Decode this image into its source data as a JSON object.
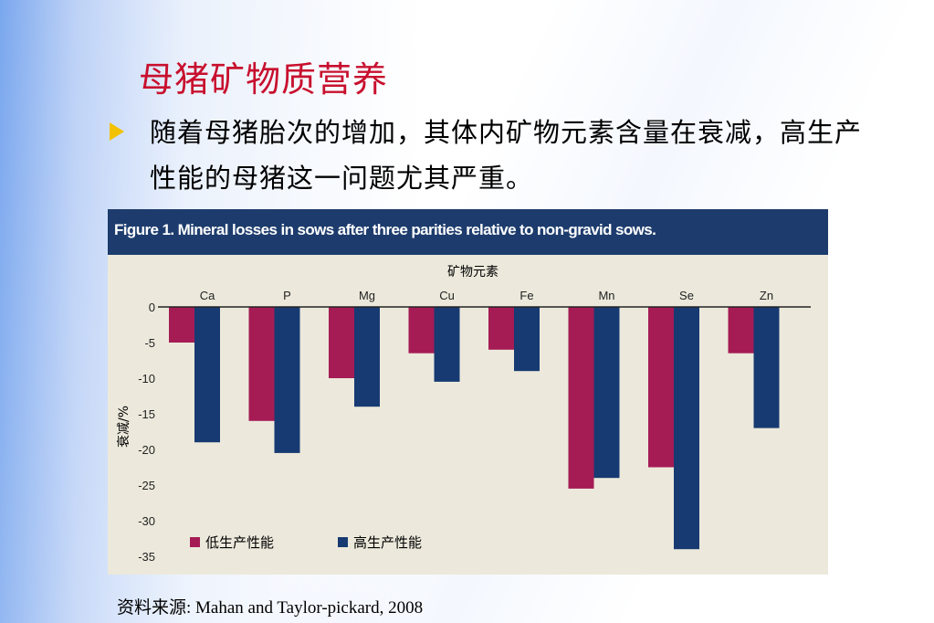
{
  "slide": {
    "title": "母猪矿物质营养",
    "bullet": "随着母猪胎次的增加，其体内矿物元素含量在衰减，高生产性能的母猪这一问题尤其严重。",
    "source": "资料来源: Mahan and Taylor-pickard, 2008"
  },
  "figure": {
    "header": "Figure 1. Mineral losses in sows after three parities relative to non-gravid sows."
  },
  "colors": {
    "low": "#a51c55",
    "high": "#173a72",
    "accent_title": "#c8102e"
  },
  "chart_data": {
    "type": "bar",
    "title": "",
    "xlabel": "矿物元素",
    "ylabel": "衰减/%",
    "categories": [
      "Ca",
      "P",
      "Mg",
      "Cu",
      "Fe",
      "Mn",
      "Se",
      "Zn"
    ],
    "series": [
      {
        "name": "低生产性能",
        "values": [
          -5,
          -16,
          -10,
          -6.5,
          -6,
          -25.5,
          -22.5,
          -6.5
        ]
      },
      {
        "name": "高生产性能",
        "values": [
          -19,
          -20.5,
          -14,
          -10.5,
          -9,
          -24,
          -34,
          -17
        ]
      }
    ],
    "ylim": [
      -35,
      0
    ],
    "yticks": [
      "0",
      "-5",
      "-10",
      "-15",
      "-20",
      "-25",
      "-30",
      "-35"
    ],
    "grid": false,
    "legend": "bottom-left"
  }
}
